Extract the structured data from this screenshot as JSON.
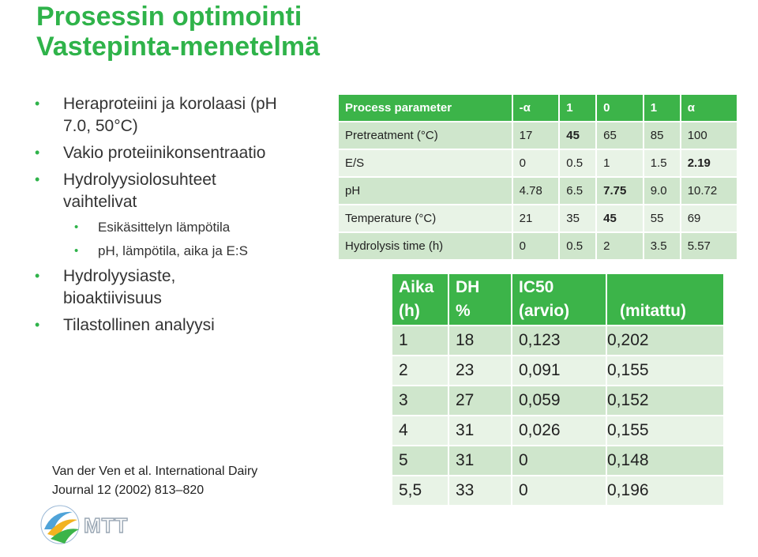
{
  "slide": {
    "title_line1": "Prosessin optimointi",
    "title_line2": "Vastepinta-menetelmä"
  },
  "bullets": [
    {
      "level": 1,
      "text": "Heraproteiini ja korolaasi (pH"
    },
    {
      "level": 1,
      "text": "7.0,  50°C)",
      "continuation": true
    },
    {
      "level": 1,
      "text": "Vakio proteiinikonsentraatio"
    },
    {
      "level": 1,
      "text": "Hydrolyysiolosuhteet"
    },
    {
      "level": 1,
      "text": "vaihtelivat",
      "continuation": true
    },
    {
      "level": 2,
      "text": "Esikäsittelyn lämpötila"
    },
    {
      "level": 2,
      "text": "pH, lämpötila, aika ja E:S"
    },
    {
      "level": 1,
      "text": "Hydrolyysiaste,"
    },
    {
      "level": 1,
      "text": "bioaktiivisuus",
      "continuation": true
    },
    {
      "level": 1,
      "text": "Tilastollinen analyysi"
    }
  ],
  "reference": {
    "line1": "Van der Ven et al.  International Dairy",
    "line2": "Journal 12 (2002) 813–820"
  },
  "logo": {
    "text": "MTT",
    "icon": "mtt-logo-icon"
  },
  "params_table": {
    "header": [
      "Process parameter",
      "-α",
      "1",
      "0",
      "1",
      "α"
    ],
    "rows": [
      {
        "cells": [
          "Pretreatment (°C)",
          "17",
          "45",
          "65",
          "85",
          "100"
        ],
        "bold": [
          2
        ]
      },
      {
        "cells": [
          "E/S",
          "0",
          "0.5",
          "1",
          "1.5",
          "2.19"
        ],
        "bold": [
          5
        ]
      },
      {
        "cells": [
          "pH",
          "4.78",
          "6.5",
          "7.75",
          "9.0",
          "10.72"
        ],
        "bold": [
          3
        ]
      },
      {
        "cells": [
          "Temperature (°C)",
          "21",
          "35",
          "45",
          "55",
          "69"
        ],
        "bold": [
          3
        ]
      },
      {
        "cells": [
          "Hydrolysis time (h)",
          "0",
          "0.5",
          "2",
          "3.5",
          "5.57"
        ],
        "bold": []
      }
    ]
  },
  "results_table": {
    "header": {
      "aika_line1": "Aika",
      "aika_line2": "(h)",
      "dh_line1": "DH",
      "dh_line2": "%",
      "ic50_line1": "IC50",
      "ic50_line2": "(arvio)",
      "mitattu": "(mitattu)"
    },
    "rows": [
      [
        "1",
        "18",
        "0,123",
        "0,202"
      ],
      [
        "2",
        "23",
        "0,091",
        "0,155"
      ],
      [
        "3",
        "27",
        "0,059",
        "0,152"
      ],
      [
        "4",
        "31",
        "0,026",
        "0,155"
      ],
      [
        "5",
        "31",
        "0",
        "0,148"
      ],
      [
        "5,5",
        "33",
        "0",
        "0,196"
      ]
    ]
  },
  "colors": {
    "accent": "#2fb34a",
    "header_bg": "#3cb449",
    "row_dark": "#cfe6cc",
    "row_light": "#e8f3e6"
  }
}
